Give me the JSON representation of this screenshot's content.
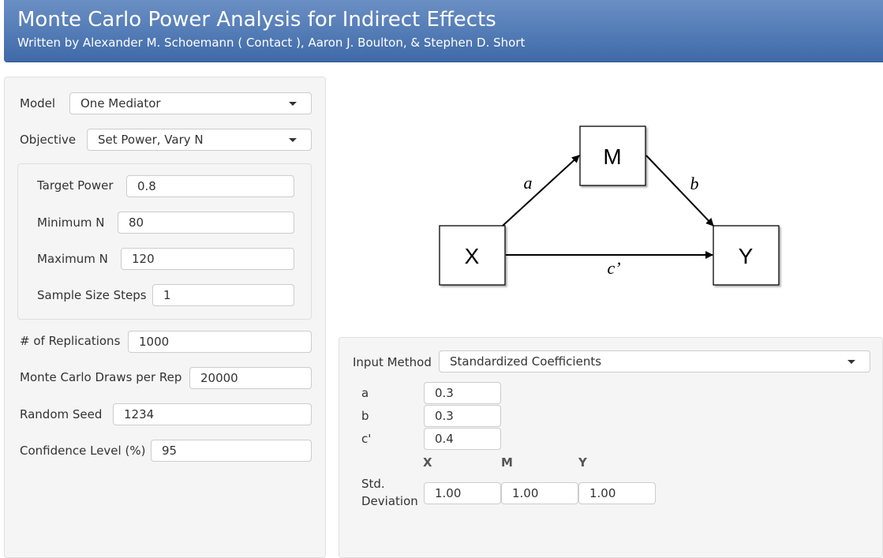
{
  "header": {
    "title": "Monte Carlo Power Analysis for Indirect Effects",
    "subtitle": "Written by Alexander M. Schoemann ( Contact ), Aaron J. Boulton, & Stephen D. Short"
  },
  "settings": {
    "model": {
      "label": "Model",
      "value": "One Mediator"
    },
    "objective": {
      "label": "Objective",
      "value": "Set Power, Vary N"
    },
    "target_power": {
      "label": "Target Power",
      "value": "0.8"
    },
    "min_n": {
      "label": "Minimum N",
      "value": "80"
    },
    "max_n": {
      "label": "Maximum N",
      "value": "120"
    },
    "steps": {
      "label": "Sample Size Steps",
      "value": "1"
    },
    "reps": {
      "label": "# of Replications",
      "value": "1000"
    },
    "draws": {
      "label": "Monte Carlo Draws per Rep",
      "value": "20000"
    },
    "seed": {
      "label": "Random Seed",
      "value": "1234"
    },
    "conf": {
      "label": "Confidence Level (%)",
      "value": "95"
    }
  },
  "diagram": {
    "nodes": {
      "x": "X",
      "m": "M",
      "y": "Y"
    },
    "paths": {
      "a": "a",
      "b": "b",
      "c": "c’"
    }
  },
  "input": {
    "method": {
      "label": "Input Method",
      "value": "Standardized Coefficients"
    },
    "coef_a": {
      "label": "a",
      "value": "0.3"
    },
    "coef_b": {
      "label": "b",
      "value": "0.3"
    },
    "coef_c": {
      "label": "c'",
      "value": "0.4"
    },
    "columns": {
      "x": "X",
      "m": "M",
      "y": "Y"
    },
    "sd_label_1": "Std.",
    "sd_label_2": "Deviation",
    "sd": {
      "x": "1.00",
      "m": "1.00",
      "y": "1.00"
    }
  }
}
